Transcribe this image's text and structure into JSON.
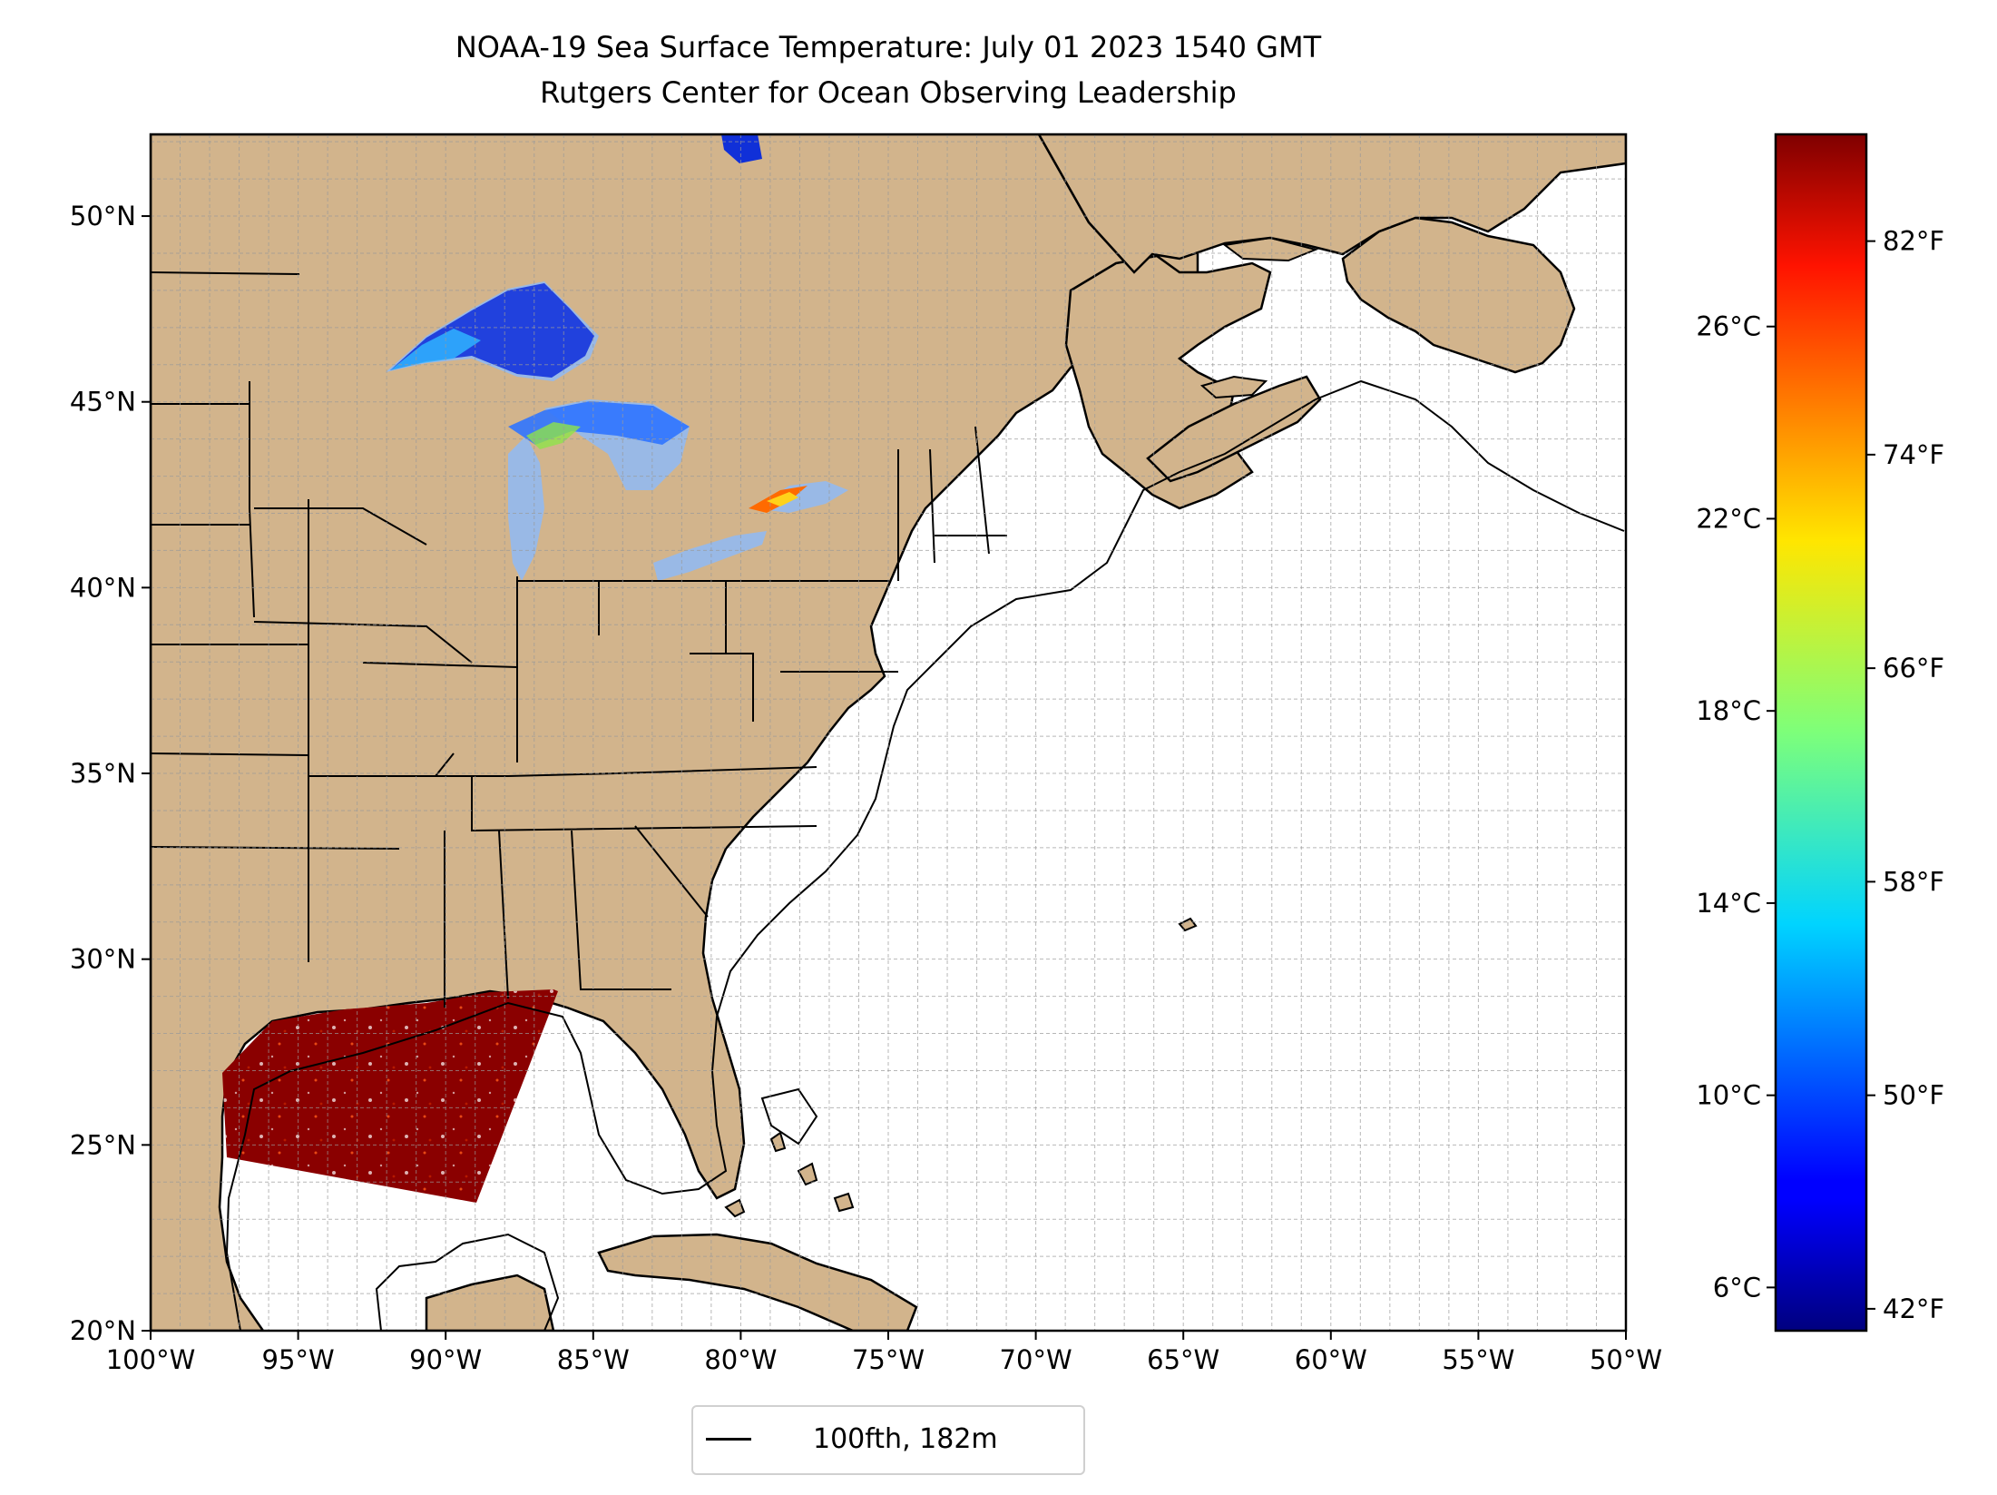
{
  "title": "NOAA-19 Sea Surface Temperature: July 01 2023 1540 GMT",
  "subtitle": "Rutgers Center for Ocean Observing Leadership",
  "map": {
    "lon_range": [
      -100,
      -50
    ],
    "lat_range": [
      20,
      52.2
    ],
    "land_color": "#d2b48c",
    "water_color": "#ffffff",
    "lake_color": "#99b9e6",
    "grid": "on",
    "lon_ticks": [
      {
        "value": -100,
        "label": "100°W"
      },
      {
        "value": -95,
        "label": "95°W"
      },
      {
        "value": -90,
        "label": "90°W"
      },
      {
        "value": -85,
        "label": "85°W"
      },
      {
        "value": -80,
        "label": "80°W"
      },
      {
        "value": -75,
        "label": "75°W"
      },
      {
        "value": -70,
        "label": "70°W"
      },
      {
        "value": -65,
        "label": "65°W"
      },
      {
        "value": -60,
        "label": "60°W"
      },
      {
        "value": -55,
        "label": "55°W"
      },
      {
        "value": -50,
        "label": "50°W"
      }
    ],
    "lat_ticks": [
      {
        "value": 20,
        "label": "20°N"
      },
      {
        "value": 25,
        "label": "25°N"
      },
      {
        "value": 30,
        "label": "30°N"
      },
      {
        "value": 35,
        "label": "35°N"
      },
      {
        "value": 40,
        "label": "40°N"
      },
      {
        "value": 45,
        "label": "45°N"
      },
      {
        "value": 50,
        "label": "50°N"
      }
    ]
  },
  "colorbar": {
    "colormap": "jet",
    "range_c": [
      5.1,
      30.0
    ],
    "celsius_ticks": [
      {
        "value": 6,
        "label": "6°C"
      },
      {
        "value": 10,
        "label": "10°C"
      },
      {
        "value": 14,
        "label": "14°C"
      },
      {
        "value": 18,
        "label": "18°C"
      },
      {
        "value": 22,
        "label": "22°C"
      },
      {
        "value": 26,
        "label": "26°C"
      }
    ],
    "fahrenheit_ticks": [
      {
        "value": 42,
        "label": "42°F"
      },
      {
        "value": 50,
        "label": "50°F"
      },
      {
        "value": 58,
        "label": "58°F"
      },
      {
        "value": 66,
        "label": "66°F"
      },
      {
        "value": 74,
        "label": "74°F"
      },
      {
        "value": 82,
        "label": "82°F"
      }
    ]
  },
  "legend": {
    "placement": "bottom-center",
    "line_color": "#000000",
    "label": "100fth, 182m"
  }
}
